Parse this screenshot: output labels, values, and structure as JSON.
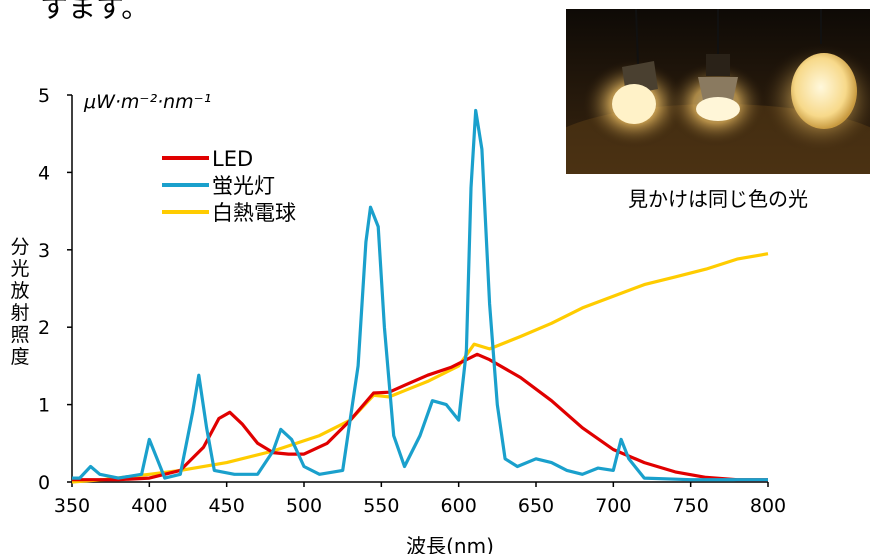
{
  "page_fragment": "すます。",
  "photo_caption": "見かけは同じ色の光",
  "colors": {
    "led": "#e00000",
    "fluorescent": "#1aa0cc",
    "incandescent": "#ffcc00",
    "axis": "#000000"
  },
  "chart_data": {
    "type": "line",
    "title": "",
    "xlabel": "波長(nm)",
    "ylabel": "分光放射照度",
    "unit_label": "μW·m⁻²·nm⁻¹",
    "xlim": [
      350,
      800
    ],
    "ylim": [
      0,
      5
    ],
    "xticks": [
      "350",
      "400",
      "450",
      "500",
      "550",
      "600",
      "650",
      "700",
      "750",
      "800"
    ],
    "yticks": [
      "0",
      "1",
      "2",
      "3",
      "4",
      "5"
    ],
    "legend_position": "top-left",
    "series": [
      {
        "name": "LED",
        "color": "#e00000",
        "points": [
          [
            350,
            0.03
          ],
          [
            380,
            0.03
          ],
          [
            400,
            0.05
          ],
          [
            420,
            0.15
          ],
          [
            435,
            0.45
          ],
          [
            445,
            0.82
          ],
          [
            452,
            0.9
          ],
          [
            460,
            0.75
          ],
          [
            470,
            0.5
          ],
          [
            480,
            0.38
          ],
          [
            490,
            0.36
          ],
          [
            500,
            0.36
          ],
          [
            515,
            0.5
          ],
          [
            530,
            0.8
          ],
          [
            545,
            1.15
          ],
          [
            555,
            1.16
          ],
          [
            565,
            1.25
          ],
          [
            580,
            1.38
          ],
          [
            595,
            1.48
          ],
          [
            605,
            1.58
          ],
          [
            612,
            1.65
          ],
          [
            620,
            1.58
          ],
          [
            640,
            1.35
          ],
          [
            660,
            1.05
          ],
          [
            680,
            0.7
          ],
          [
            700,
            0.42
          ],
          [
            720,
            0.25
          ],
          [
            740,
            0.13
          ],
          [
            760,
            0.06
          ],
          [
            780,
            0.03
          ],
          [
            800,
            0.03
          ]
        ]
      },
      {
        "name": "蛍光灯",
        "color": "#1aa0cc",
        "points": [
          [
            350,
            0.05
          ],
          [
            355,
            0.05
          ],
          [
            362,
            0.2
          ],
          [
            368,
            0.1
          ],
          [
            380,
            0.05
          ],
          [
            395,
            0.1
          ],
          [
            400,
            0.55
          ],
          [
            405,
            0.3
          ],
          [
            410,
            0.05
          ],
          [
            420,
            0.1
          ],
          [
            428,
            0.9
          ],
          [
            432,
            1.38
          ],
          [
            437,
            0.7
          ],
          [
            442,
            0.15
          ],
          [
            455,
            0.1
          ],
          [
            470,
            0.1
          ],
          [
            480,
            0.4
          ],
          [
            485,
            0.68
          ],
          [
            492,
            0.55
          ],
          [
            500,
            0.2
          ],
          [
            510,
            0.1
          ],
          [
            525,
            0.15
          ],
          [
            535,
            1.5
          ],
          [
            540,
            3.1
          ],
          [
            543,
            3.55
          ],
          [
            548,
            3.3
          ],
          [
            552,
            2.0
          ],
          [
            558,
            0.6
          ],
          [
            565,
            0.2
          ],
          [
            575,
            0.6
          ],
          [
            583,
            1.05
          ],
          [
            592,
            1.0
          ],
          [
            600,
            0.8
          ],
          [
            605,
            1.7
          ],
          [
            608,
            3.8
          ],
          [
            611,
            4.8
          ],
          [
            615,
            4.3
          ],
          [
            620,
            2.3
          ],
          [
            625,
            1.0
          ],
          [
            630,
            0.3
          ],
          [
            638,
            0.2
          ],
          [
            650,
            0.3
          ],
          [
            660,
            0.25
          ],
          [
            670,
            0.15
          ],
          [
            680,
            0.1
          ],
          [
            690,
            0.18
          ],
          [
            700,
            0.15
          ],
          [
            705,
            0.55
          ],
          [
            710,
            0.3
          ],
          [
            720,
            0.05
          ],
          [
            750,
            0.03
          ],
          [
            800,
            0.03
          ]
        ]
      },
      {
        "name": "白熱電球",
        "color": "#ffcc00",
        "points": [
          [
            350,
            0.0
          ],
          [
            370,
            0.03
          ],
          [
            400,
            0.1
          ],
          [
            420,
            0.15
          ],
          [
            450,
            0.25
          ],
          [
            480,
            0.4
          ],
          [
            510,
            0.6
          ],
          [
            530,
            0.8
          ],
          [
            545,
            1.12
          ],
          [
            555,
            1.1
          ],
          [
            565,
            1.18
          ],
          [
            580,
            1.3
          ],
          [
            600,
            1.5
          ],
          [
            610,
            1.78
          ],
          [
            620,
            1.72
          ],
          [
            640,
            1.88
          ],
          [
            660,
            2.05
          ],
          [
            680,
            2.25
          ],
          [
            700,
            2.4
          ],
          [
            720,
            2.55
          ],
          [
            740,
            2.65
          ],
          [
            760,
            2.75
          ],
          [
            780,
            2.88
          ],
          [
            800,
            2.95
          ]
        ]
      }
    ]
  }
}
